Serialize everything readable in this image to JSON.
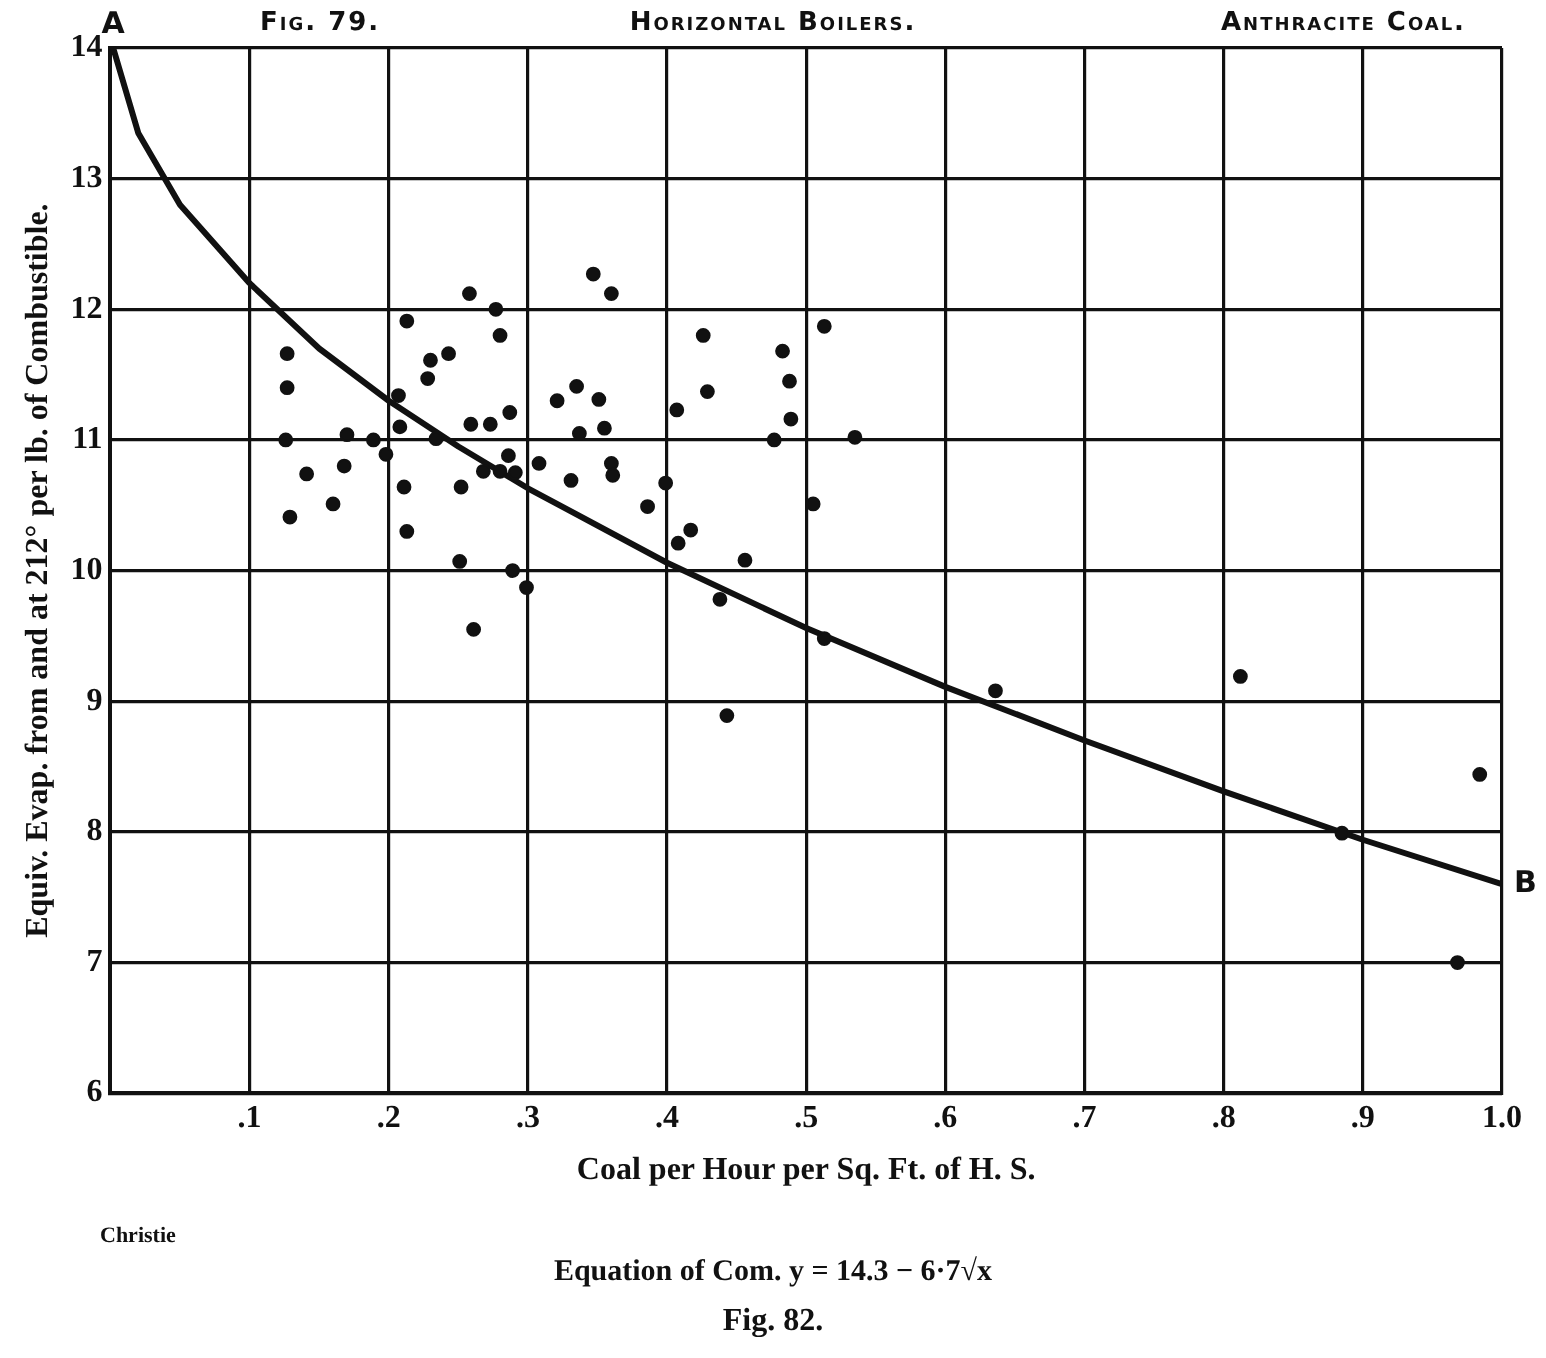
{
  "chart_data": {
    "type": "scatter",
    "title": "Horizontal Boilers.",
    "xlabel": "Coal per Hour per Sq. Ft. of H. S.",
    "ylabel": "Equiv. Evap. from and at 212° per lb. of Combustible.",
    "xlim": [
      0,
      1
    ],
    "xticks": [
      {
        "value": 0.1,
        "label": ".1"
      },
      {
        "value": 0.2,
        "label": ".2"
      },
      {
        "value": 0.3,
        "label": ".3"
      },
      {
        "value": 0.4,
        "label": ".4"
      },
      {
        "value": 0.5,
        "label": ".5"
      },
      {
        "value": 0.6,
        "label": ".6"
      },
      {
        "value": 0.7,
        "label": ".7"
      },
      {
        "value": 0.8,
        "label": ".8"
      },
      {
        "value": 0.9,
        "label": ".9"
      },
      {
        "value": 1.0,
        "label": "1.0"
      }
    ],
    "ylim": [
      6,
      14
    ],
    "yticks": [
      6,
      7,
      8,
      9,
      10,
      11,
      12,
      13,
      14
    ],
    "grid": true,
    "marker": "circle",
    "series": [
      {
        "color": "#111111",
        "x": [
          0.258,
          0.277,
          0.347,
          0.213,
          0.28,
          0.127,
          0.23,
          0.243,
          0.228,
          0.127,
          0.207,
          0.321,
          0.335,
          0.287,
          0.208,
          0.259,
          0.273,
          0.337,
          0.126,
          0.17,
          0.189,
          0.234,
          0.198,
          0.141,
          0.168,
          0.286,
          0.308,
          0.268,
          0.28,
          0.291,
          0.331,
          0.211,
          0.252,
          0.129,
          0.16,
          0.213,
          0.251,
          0.289,
          0.299,
          0.261,
          0.36,
          0.426,
          0.483,
          0.513,
          0.488,
          0.429,
          0.407,
          0.489,
          0.351,
          0.355,
          0.477,
          0.535,
          0.36,
          0.361,
          0.399,
          0.386,
          0.505,
          0.417,
          0.408,
          0.456,
          0.438,
          0.443,
          0.636,
          0.513,
          0.812,
          0.984,
          0.885,
          0.968
        ],
        "values": [
          12.12,
          12.0,
          12.27,
          11.91,
          11.8,
          11.66,
          11.61,
          11.66,
          11.47,
          11.4,
          11.34,
          11.3,
          11.41,
          11.21,
          11.1,
          11.12,
          11.12,
          11.05,
          11.0,
          11.04,
          11.0,
          11.01,
          10.89,
          10.74,
          10.8,
          10.88,
          10.82,
          10.76,
          10.76,
          10.75,
          10.69,
          10.64,
          10.64,
          10.41,
          10.51,
          10.3,
          10.07,
          10.0,
          9.87,
          9.55,
          12.12,
          11.8,
          11.68,
          11.87,
          11.45,
          11.37,
          11.23,
          11.16,
          11.31,
          11.09,
          11.0,
          11.02,
          10.82,
          10.73,
          10.67,
          10.49,
          10.51,
          10.31,
          10.21,
          10.08,
          9.78,
          8.89,
          9.08,
          9.48,
          9.19,
          8.44,
          7.99,
          7.0
        ]
      },
      {
        "type": "line",
        "color": "#111111",
        "marker": "none",
        "x": [
          0.002,
          0.02,
          0.05,
          0.1,
          0.15,
          0.2,
          0.25,
          0.3,
          0.4,
          0.5,
          0.6,
          0.7,
          0.8,
          0.9,
          1.0
        ],
        "values": [
          14.0,
          13.35,
          12.8,
          12.2,
          11.7,
          11.3,
          10.95,
          10.63,
          10.06,
          9.56,
          9.11,
          8.7,
          8.31,
          7.94,
          7.6
        ]
      }
    ],
    "annotations": [
      "Fig. 79.",
      "Anthracite Coal.",
      "Christie",
      "Equation of Com. y = 14.3 − 6·7√x",
      "Fig. 82.",
      {
        "text": "A",
        "x": 0.002,
        "y": 14
      },
      {
        "text": "B",
        "x": 1.0,
        "y": 7.6
      }
    ]
  }
}
